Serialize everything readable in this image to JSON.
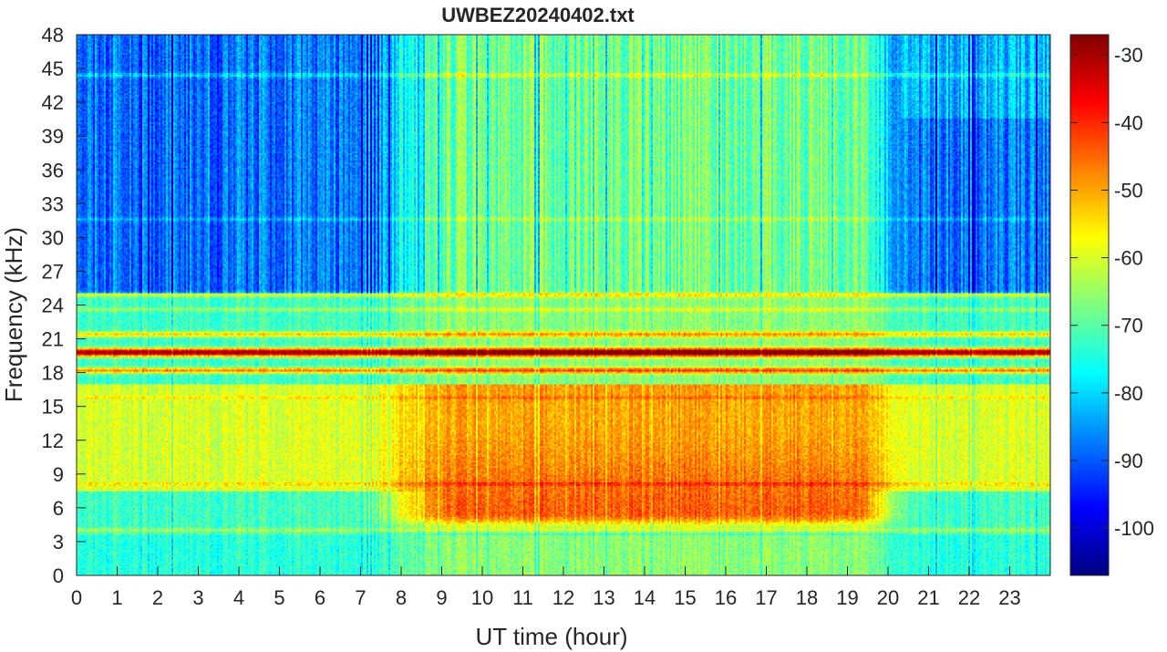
{
  "chart_data": {
    "type": "heatmap",
    "title": "UWBEZ20240402.txt",
    "xlabel": "UT time (hour)",
    "ylabel": "Frequency (kHz)",
    "xlim": [
      0,
      24
    ],
    "ylim": [
      0,
      48
    ],
    "x_ticks": [
      "0",
      "1",
      "2",
      "3",
      "4",
      "5",
      "6",
      "7",
      "8",
      "9",
      "10",
      "11",
      "12",
      "13",
      "14",
      "15",
      "16",
      "17",
      "18",
      "19",
      "20",
      "21",
      "22",
      "23"
    ],
    "y_ticks": [
      "0",
      "3",
      "6",
      "9",
      "12",
      "15",
      "18",
      "21",
      "24",
      "27",
      "30",
      "33",
      "36",
      "39",
      "42",
      "45",
      "48"
    ],
    "colorbar": {
      "colormap": "jet",
      "range": [
        -107,
        -27
      ],
      "ticks": [
        "-30",
        "-40",
        "-50",
        "-60",
        "-70",
        "-80",
        "-90",
        "-100"
      ],
      "tick_values": [
        -30,
        -40,
        -50,
        -60,
        -70,
        -80,
        -90,
        -100
      ]
    },
    "narrowband_lines_khz": [
      19.8,
      18.2,
      21.4,
      24.9,
      23.6,
      44.4,
      31.6,
      8.1,
      4.0,
      15.8
    ],
    "description_levels_db": {
      "upper_band_night": -88,
      "upper_band_day": -68,
      "lower_band_day": -47,
      "lower_band_night": -60,
      "strong_line_19_8": -27
    }
  }
}
